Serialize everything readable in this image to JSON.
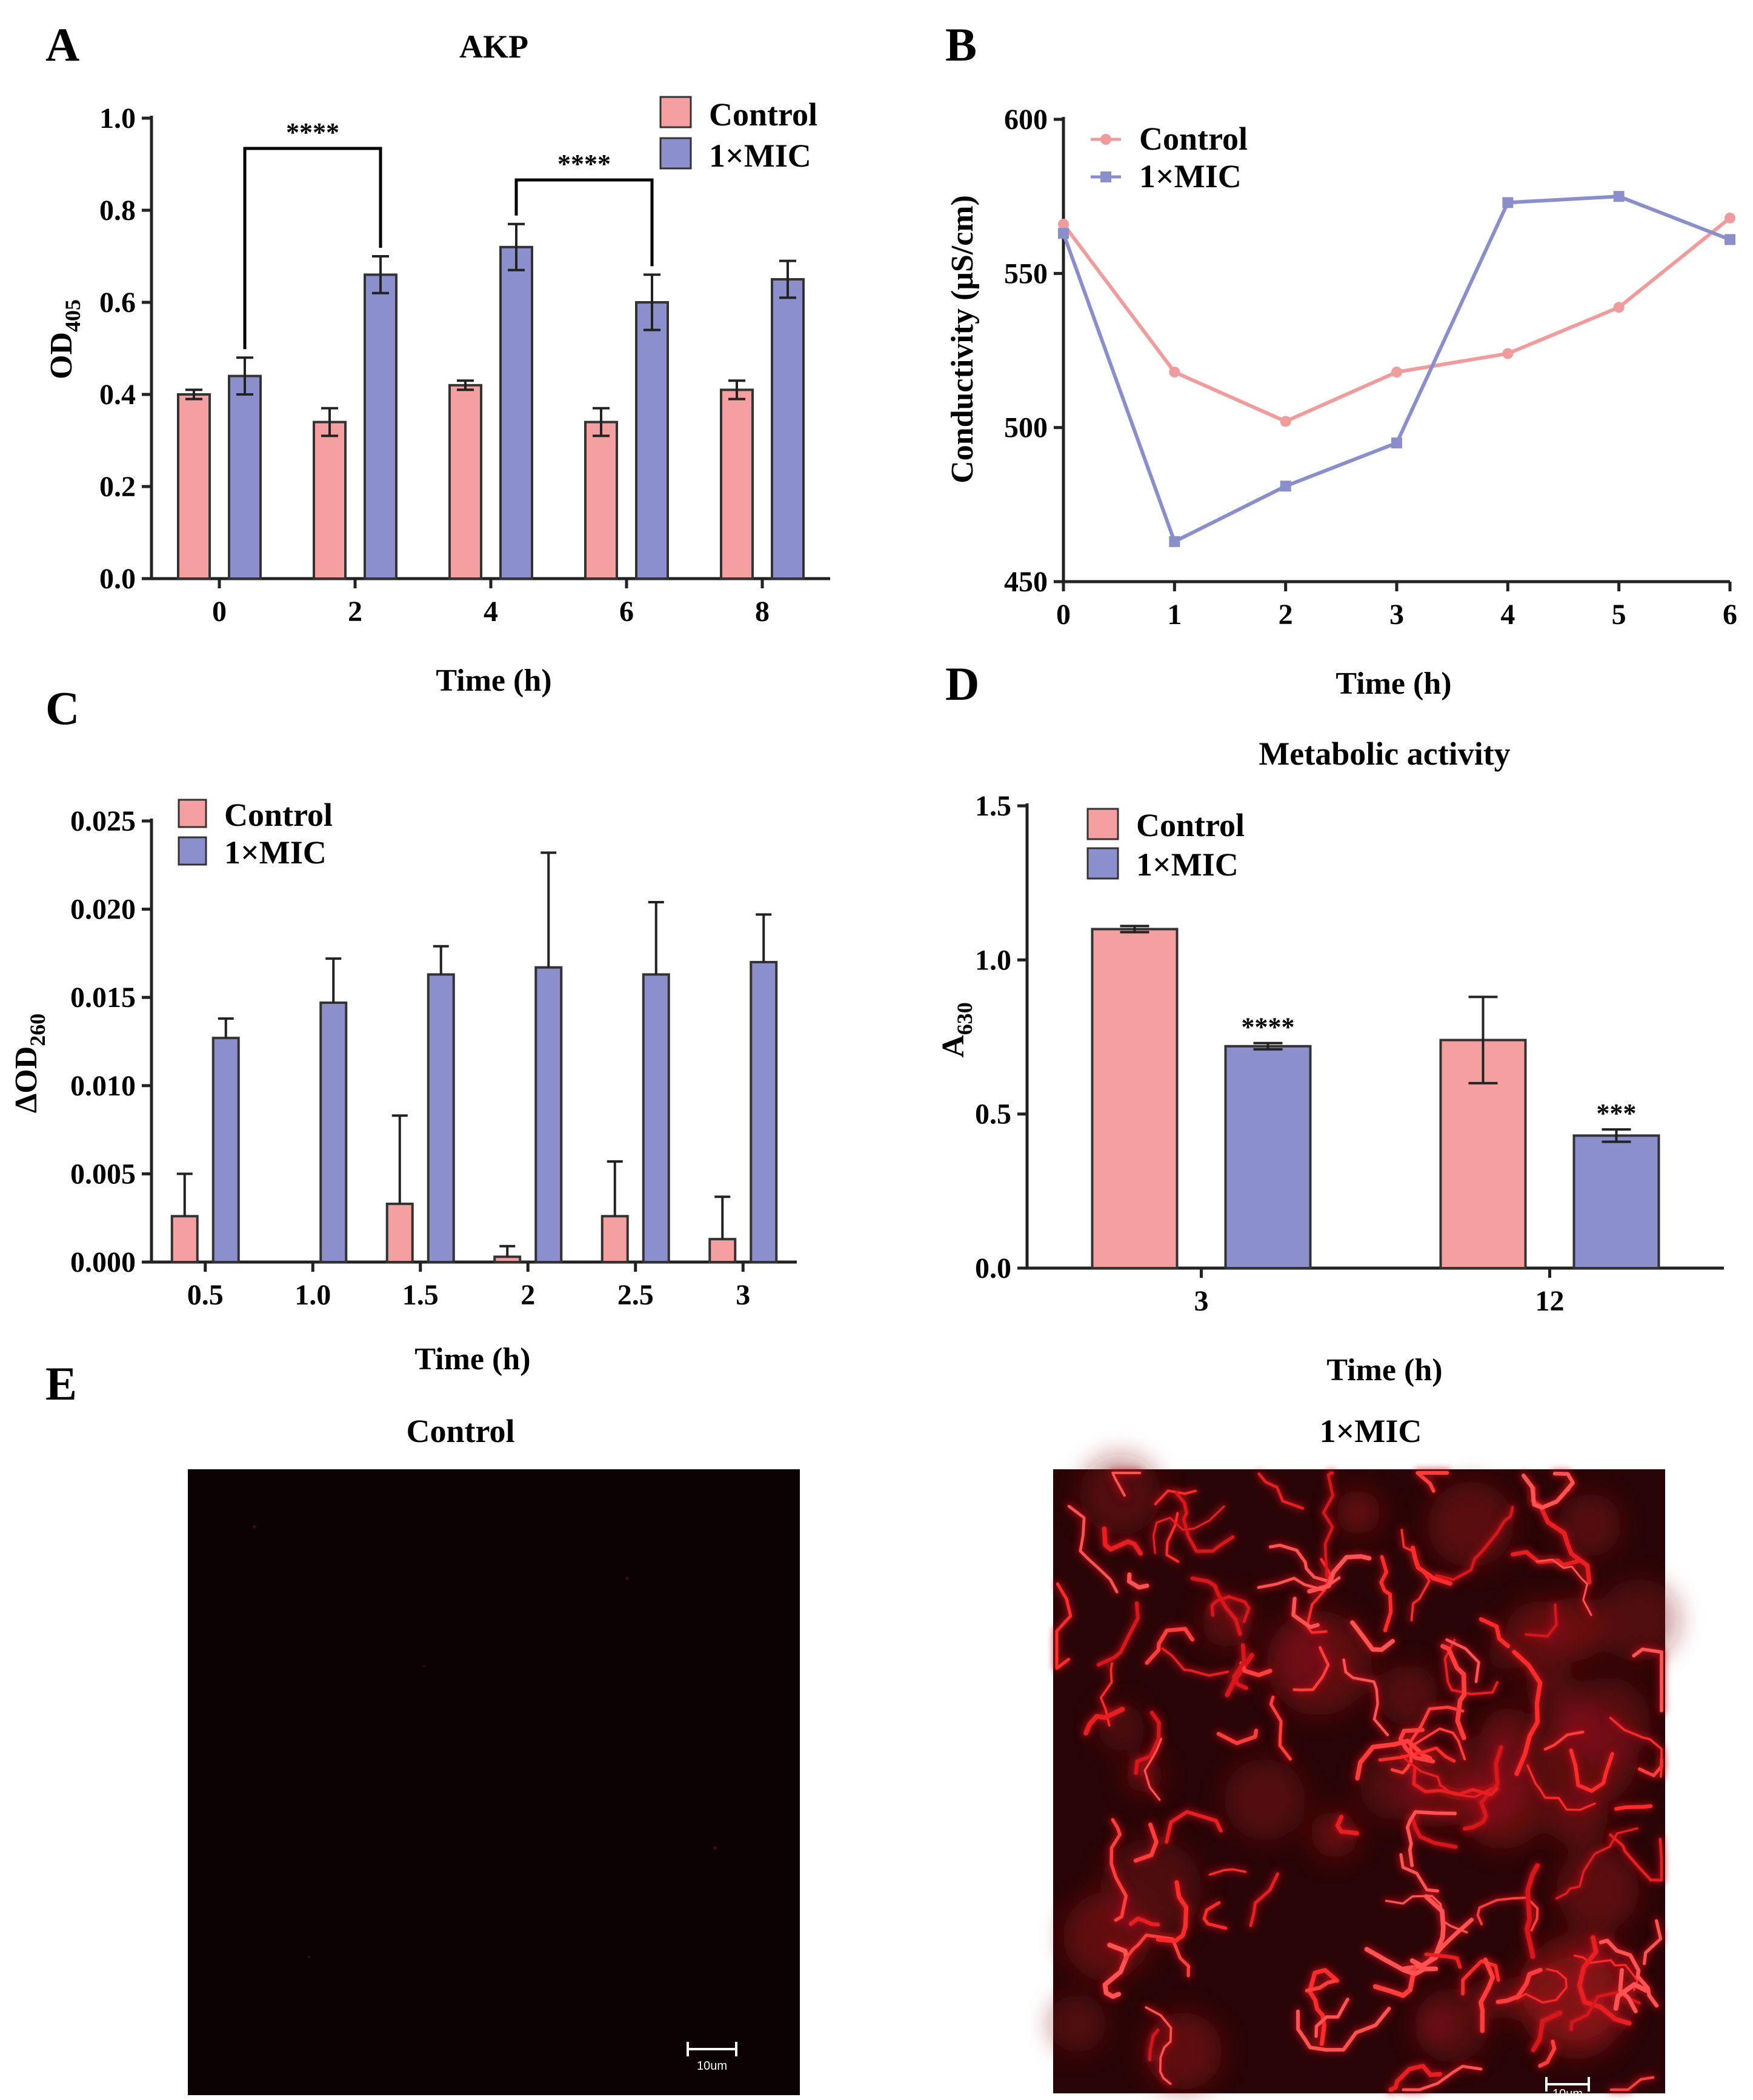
{
  "colors": {
    "control": "#F4A0A0",
    "mic": "#8B8FCB",
    "control_line": "#F19C9C",
    "mic_line": "#8A8FCC"
  },
  "legend": {
    "control": "Control",
    "mic": "1×MIC"
  },
  "chart_data": [
    {
      "panel": "A",
      "type": "bar",
      "title": "AKP",
      "xlabel": "Time (h)",
      "ylabel": "OD",
      "ylabel_sub": "405",
      "categories": [
        "0",
        "2",
        "4",
        "6",
        "8"
      ],
      "ylim": [
        0,
        1.0
      ],
      "yticks": [
        "0.0",
        "0.2",
        "0.4",
        "0.6",
        "0.8",
        "1.0"
      ],
      "series": [
        {
          "name": "Control",
          "values": [
            0.4,
            0.34,
            0.42,
            0.34,
            0.41
          ],
          "errors": [
            0.01,
            0.03,
            0.01,
            0.03,
            0.02
          ]
        },
        {
          "name": "1×MIC",
          "values": [
            0.44,
            0.66,
            0.72,
            0.6,
            0.65
          ],
          "errors": [
            0.04,
            0.04,
            0.05,
            0.06,
            0.04
          ]
        }
      ],
      "significance": [
        {
          "label": "****",
          "from": "1×MIC @ 0",
          "to": "1×MIC @ 2"
        },
        {
          "label": "****",
          "from": "1×MIC @ 4",
          "to": "1×MIC @ 6"
        }
      ]
    },
    {
      "panel": "B",
      "type": "line",
      "xlabel": "Time (h)",
      "ylabel": "Conductivity (μS/cm)",
      "x": [
        0,
        1,
        2,
        3,
        4,
        5,
        6
      ],
      "xticks": [
        "0",
        "1",
        "2",
        "3",
        "4",
        "5",
        "6"
      ],
      "ylim": [
        450,
        600
      ],
      "yticks": [
        "450",
        "500",
        "550",
        "600"
      ],
      "series": [
        {
          "name": "Control",
          "values": [
            566,
            518,
            502,
            518,
            524,
            539,
            568
          ]
        },
        {
          "name": "1×MIC",
          "values": [
            563,
            463,
            481,
            495,
            573,
            575,
            561
          ]
        }
      ]
    },
    {
      "panel": "C",
      "type": "bar",
      "xlabel": "Time (h)",
      "ylabel": "ΔOD",
      "ylabel_sub": "260",
      "categories": [
        "0.5",
        "1.0",
        "1.5",
        "2",
        "2.5",
        "3"
      ],
      "ylim": [
        0,
        0.025
      ],
      "yticks": [
        "0.000",
        "0.005",
        "0.010",
        "0.015",
        "0.020",
        "0.025"
      ],
      "series": [
        {
          "name": "Control",
          "values": [
            0.0026,
            0.0,
            0.0033,
            0.0003,
            0.0026,
            0.0013
          ],
          "errors": [
            0.0024,
            0.0,
            0.005,
            0.0006,
            0.0031,
            0.0024
          ]
        },
        {
          "name": "1×MIC",
          "values": [
            0.0127,
            0.0147,
            0.0163,
            0.0167,
            0.0163,
            0.017
          ],
          "errors": [
            0.0011,
            0.0025,
            0.0016,
            0.0065,
            0.0041,
            0.0027
          ]
        }
      ]
    },
    {
      "panel": "D",
      "type": "bar",
      "title": "Metabolic activity",
      "xlabel": "Time (h)",
      "ylabel": "A",
      "ylabel_sub": "630",
      "categories": [
        "3",
        "12"
      ],
      "ylim": [
        0,
        1.5
      ],
      "yticks": [
        "0.0",
        "0.5",
        "1.0",
        "1.5"
      ],
      "series": [
        {
          "name": "Control",
          "values": [
            1.1,
            0.74
          ],
          "errors": [
            0.01,
            0.14
          ]
        },
        {
          "name": "1×MIC",
          "values": [
            0.72,
            0.43
          ],
          "errors": [
            0.01,
            0.02
          ]
        }
      ],
      "significance_labels": [
        "****",
        "***"
      ]
    }
  ],
  "panelE": {
    "letter": "E",
    "control_label": "Control",
    "mic_label": "1×MIC",
    "scale_bar_label": "10um"
  }
}
